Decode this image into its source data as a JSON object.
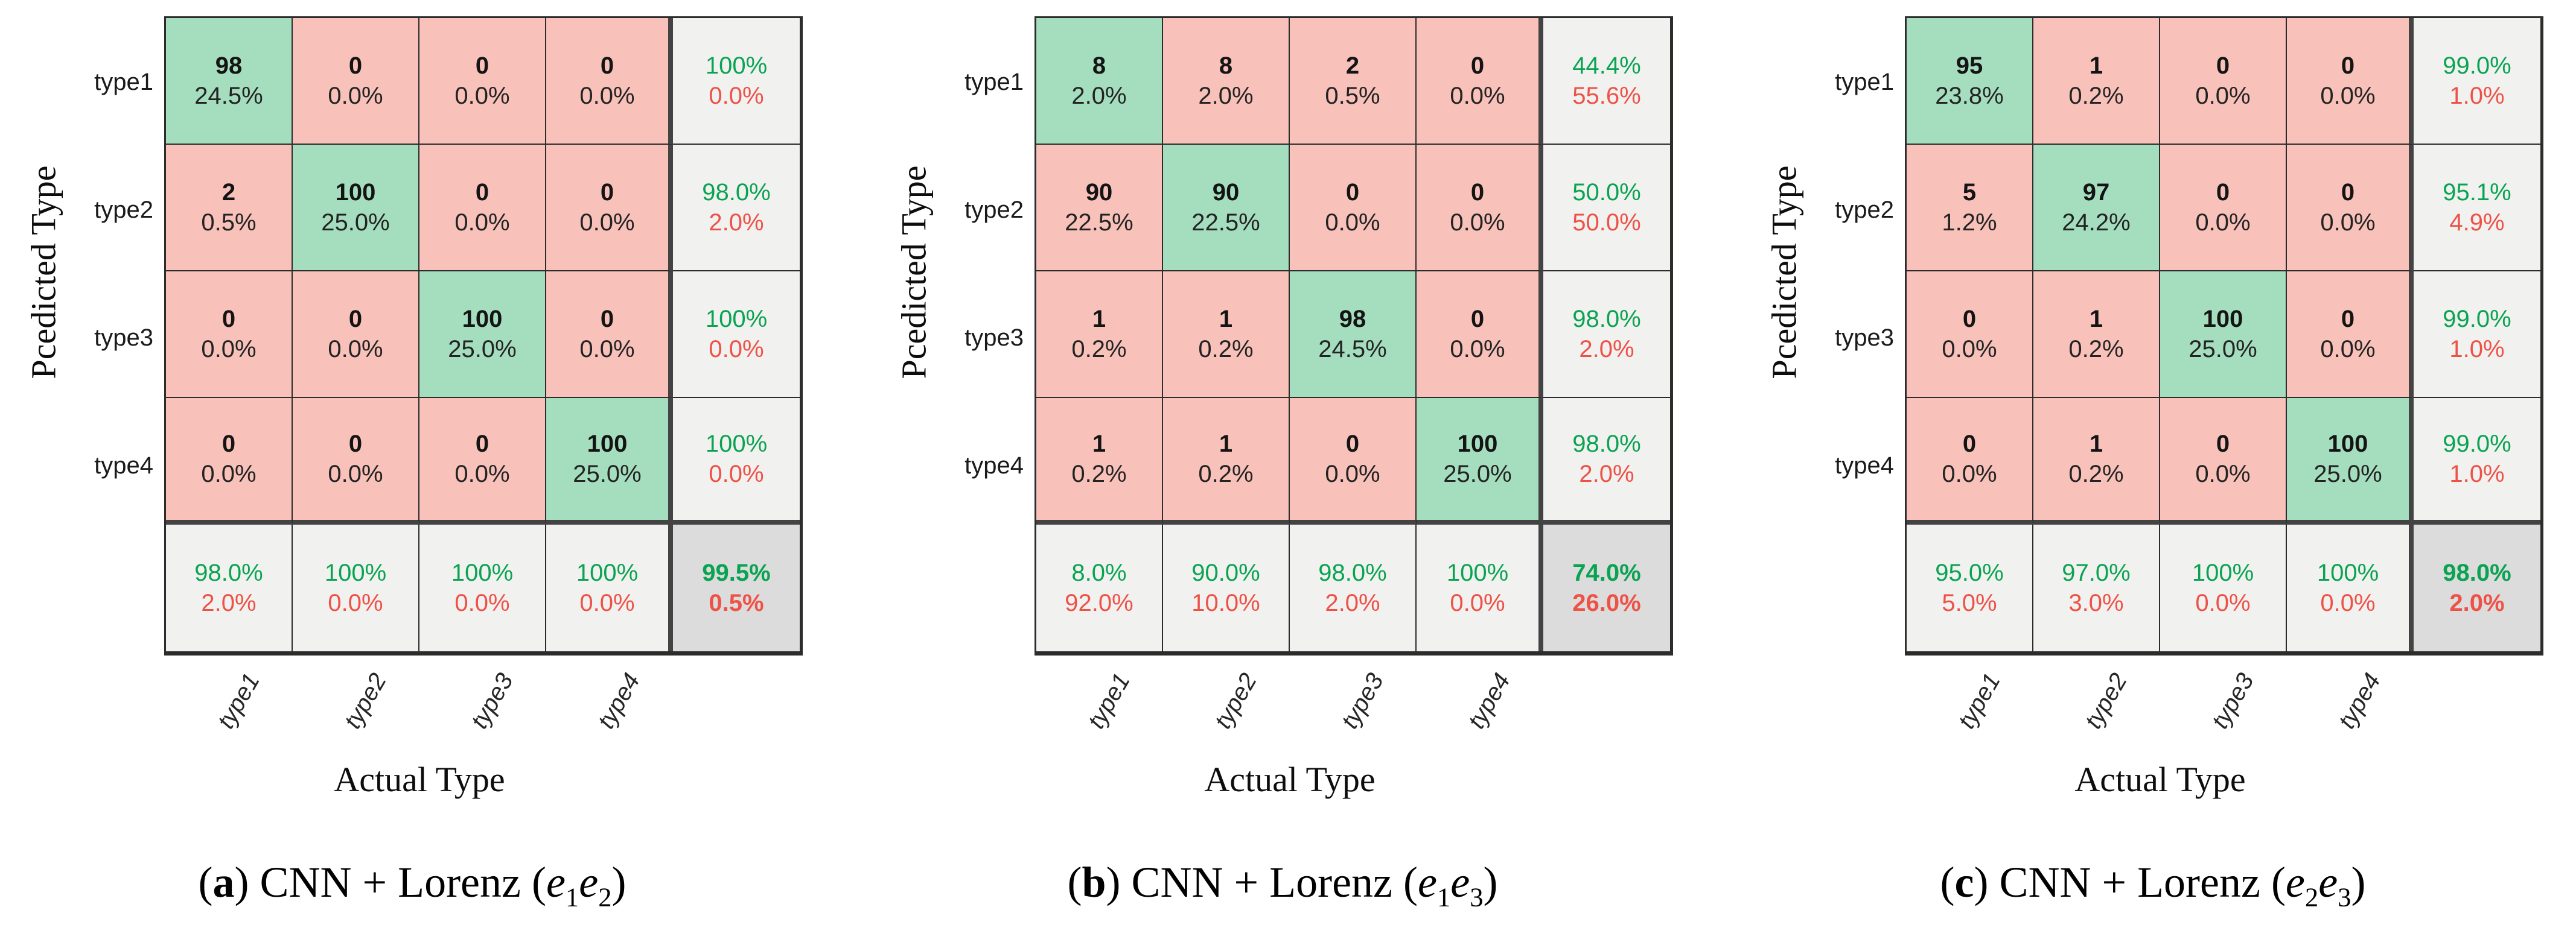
{
  "figure": {
    "description_colors": {
      "diagonal_cell_bg": "#A5DEBF",
      "offdiagonal_cell_bg": "#F8C1B9",
      "summary_cell_bg": "#F1F1F0",
      "overall_cell_bg": "#DCDCDC",
      "green_percent_text": "#0AA351",
      "red_percent_text": "#EE5247",
      "grid_line": "#2c2c2c",
      "thick_separator": "#434343"
    }
  },
  "chart_data": [
    {
      "type": "heatmap",
      "title": "(a) CNN + Lorenz (e1e2)",
      "xlabel": "Actual Type",
      "ylabel": "Pcedicted Type",
      "categories": [
        "type1",
        "type2",
        "type3",
        "type4"
      ],
      "matrix_counts": [
        [
          98,
          0,
          0,
          0
        ],
        [
          2,
          100,
          0,
          0
        ],
        [
          0,
          0,
          100,
          0
        ],
        [
          0,
          0,
          0,
          100
        ]
      ],
      "matrix_pcts": [
        [
          "24.5%",
          "0.0%",
          "0.0%",
          "0.0%"
        ],
        [
          "0.5%",
          "25.0%",
          "0.0%",
          "0.0%"
        ],
        [
          "0.0%",
          "0.0%",
          "25.0%",
          "0.0%"
        ],
        [
          "0.0%",
          "0.0%",
          "0.0%",
          "25.0%"
        ]
      ],
      "row_summary": [
        {
          "green": "100%",
          "red": "0.0%"
        },
        {
          "green": "98.0%",
          "red": "2.0%"
        },
        {
          "green": "100%",
          "red": "0.0%"
        },
        {
          "green": "100%",
          "red": "0.0%"
        }
      ],
      "col_summary": [
        {
          "green": "98.0%",
          "red": "2.0%"
        },
        {
          "green": "100%",
          "red": "0.0%"
        },
        {
          "green": "100%",
          "red": "0.0%"
        },
        {
          "green": "100%",
          "red": "0.0%"
        }
      ],
      "overall": {
        "green": "99.5%",
        "red": "0.5%"
      },
      "caption": {
        "before": "(",
        "letter": "a",
        "after": ") CNN + Lorenz (",
        "e1": "e",
        "e1sub": "1",
        "e2": "e",
        "e2sub": "2",
        "close": ")"
      }
    },
    {
      "type": "heatmap",
      "title": "(b) CNN + Lorenz (e1e3)",
      "xlabel": "Actual Type",
      "ylabel": "Pcedicted Type",
      "categories": [
        "type1",
        "type2",
        "type3",
        "type4"
      ],
      "matrix_counts": [
        [
          8,
          8,
          2,
          0
        ],
        [
          90,
          90,
          0,
          0
        ],
        [
          1,
          1,
          98,
          0
        ],
        [
          1,
          1,
          0,
          100
        ]
      ],
      "matrix_pcts": [
        [
          "2.0%",
          "2.0%",
          "0.5%",
          "0.0%"
        ],
        [
          "22.5%",
          "22.5%",
          "0.0%",
          "0.0%"
        ],
        [
          "0.2%",
          "0.2%",
          "24.5%",
          "0.0%"
        ],
        [
          "0.2%",
          "0.2%",
          "0.0%",
          "25.0%"
        ]
      ],
      "row_summary": [
        {
          "green": "44.4%",
          "red": "55.6%"
        },
        {
          "green": "50.0%",
          "red": "50.0%"
        },
        {
          "green": "98.0%",
          "red": "2.0%"
        },
        {
          "green": "98.0%",
          "red": "2.0%"
        }
      ],
      "col_summary": [
        {
          "green": "8.0%",
          "red": "92.0%"
        },
        {
          "green": "90.0%",
          "red": "10.0%"
        },
        {
          "green": "98.0%",
          "red": "2.0%"
        },
        {
          "green": "100%",
          "red": "0.0%"
        }
      ],
      "overall": {
        "green": "74.0%",
        "red": "26.0%"
      },
      "caption": {
        "before": "(",
        "letter": "b",
        "after": ") CNN + Lorenz (",
        "e1": "e",
        "e1sub": "1",
        "e2": "e",
        "e2sub": "3",
        "close": ")"
      }
    },
    {
      "type": "heatmap",
      "title": "(c) CNN + Lorenz (e2e3)",
      "xlabel": "Actual Type",
      "ylabel": "Pcedicted Type",
      "categories": [
        "type1",
        "type2",
        "type3",
        "type4"
      ],
      "matrix_counts": [
        [
          95,
          1,
          0,
          0
        ],
        [
          5,
          97,
          0,
          0
        ],
        [
          0,
          1,
          100,
          0
        ],
        [
          0,
          1,
          0,
          100
        ]
      ],
      "matrix_pcts": [
        [
          "23.8%",
          "0.2%",
          "0.0%",
          "0.0%"
        ],
        [
          "1.2%",
          "24.2%",
          "0.0%",
          "0.0%"
        ],
        [
          "0.0%",
          "0.2%",
          "25.0%",
          "0.0%"
        ],
        [
          "0.0%",
          "0.2%",
          "0.0%",
          "25.0%"
        ]
      ],
      "row_summary": [
        {
          "green": "99.0%",
          "red": "1.0%"
        },
        {
          "green": "95.1%",
          "red": "4.9%"
        },
        {
          "green": "99.0%",
          "red": "1.0%"
        },
        {
          "green": "99.0%",
          "red": "1.0%"
        }
      ],
      "col_summary": [
        {
          "green": "95.0%",
          "red": "5.0%"
        },
        {
          "green": "97.0%",
          "red": "3.0%"
        },
        {
          "green": "100%",
          "red": "0.0%"
        },
        {
          "green": "100%",
          "red": "0.0%"
        }
      ],
      "overall": {
        "green": "98.0%",
        "red": "2.0%"
      },
      "caption": {
        "before": "(",
        "letter": "c",
        "after": ") CNN + Lorenz (",
        "e1": "e",
        "e1sub": "2",
        "e2": "e",
        "e2sub": "3",
        "close": ")"
      }
    }
  ]
}
